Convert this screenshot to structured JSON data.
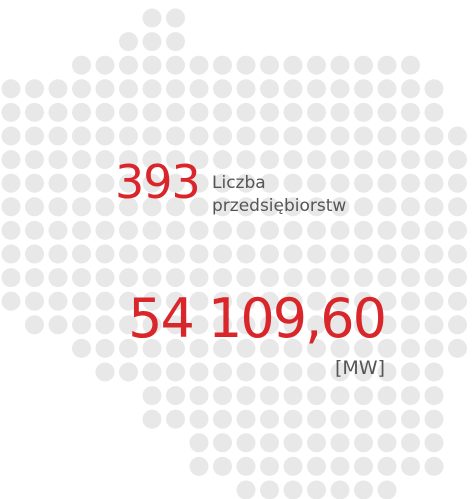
{
  "stats": [
    {
      "value": "393",
      "label_lines": [
        "Liczba",
        "przedsiębiorstw"
      ]
    },
    {
      "value": "54 109,60",
      "unit": "[MW]"
    }
  ]
}
